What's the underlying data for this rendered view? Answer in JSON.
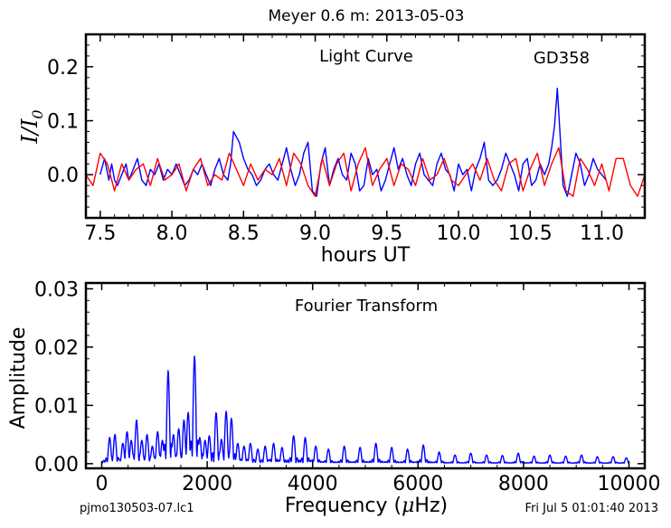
{
  "figure": {
    "title": "Meyer 0.6 m:  2013-05-03",
    "footer_left": "pjmo130503-07.lc1",
    "footer_right": "Fri Jul  5 01:01:40 2013"
  },
  "colors": {
    "data": "#0000ff",
    "model": "#ff0000",
    "axes": "#000000"
  },
  "chart_data": [
    {
      "type": "line",
      "name": "light-curve",
      "title": "Light Curve",
      "annotation": "GD358",
      "xlabel": "hours UT",
      "ylabel": "I/I0",
      "ylabel_main": "I/I",
      "ylabel_sub": "0",
      "xlim": [
        7.4,
        11.3
      ],
      "ylim": [
        -0.08,
        0.26
      ],
      "xticks": [
        7.5,
        8.0,
        8.5,
        9.0,
        9.5,
        10.0,
        10.5,
        11.0
      ],
      "xtick_labels": [
        "7.5",
        "8.0",
        "8.5",
        "9.0",
        "9.5",
        "10.0",
        "10.5",
        "11.0"
      ],
      "yticks": [
        0.0,
        0.1,
        0.2
      ],
      "ytick_labels": [
        "0.0",
        "0.1",
        "0.2"
      ],
      "grid": false,
      "series": [
        {
          "color": "#0000ff",
          "x": [
            7.5,
            7.53,
            7.56,
            7.58,
            7.6,
            7.62,
            7.65,
            7.68,
            7.7,
            7.73,
            7.76,
            7.79,
            7.82,
            7.85,
            7.88,
            7.91,
            7.94,
            7.97,
            8.0,
            8.03,
            8.06,
            8.09,
            8.12,
            8.15,
            8.18,
            8.21,
            8.24,
            8.27,
            8.3,
            8.33,
            8.36,
            8.39,
            8.41,
            8.43,
            8.45,
            8.47,
            8.5,
            8.53,
            8.56,
            8.59,
            8.62,
            8.65,
            8.68,
            8.71,
            8.74,
            8.77,
            8.8,
            8.83,
            8.86,
            8.89,
            8.92,
            8.95,
            8.98,
            9.01,
            9.04,
            9.07,
            9.1,
            9.13,
            9.16,
            9.19,
            9.22,
            9.25,
            9.28,
            9.31,
            9.34,
            9.37,
            9.4,
            9.43,
            9.46,
            9.49,
            9.52,
            9.55,
            9.58,
            9.61,
            9.64,
            9.67,
            9.7,
            9.73,
            9.76,
            9.79,
            9.82,
            9.85,
            9.88,
            9.91,
            9.94,
            9.97,
            10.0,
            10.03,
            10.06,
            10.09,
            10.12,
            10.15,
            10.18,
            10.21,
            10.24,
            10.27,
            10.3,
            10.33,
            10.36,
            10.39,
            10.42,
            10.45,
            10.48,
            10.51,
            10.54,
            10.57,
            10.6,
            10.63,
            10.65,
            10.67,
            10.69,
            10.71,
            10.73,
            10.76,
            10.79,
            10.82,
            10.85,
            10.88,
            10.91,
            10.94,
            10.97,
            11.0,
            11.03
          ],
          "y": [
            0.0,
            0.03,
            -0.01,
            0.02,
            -0.01,
            -0.02,
            0.0,
            0.02,
            -0.01,
            0.01,
            0.03,
            -0.01,
            -0.02,
            0.01,
            0.0,
            0.02,
            -0.01,
            0.01,
            0.0,
            0.02,
            0.0,
            -0.02,
            -0.01,
            0.01,
            0.0,
            0.02,
            0.0,
            -0.02,
            0.01,
            0.03,
            0.0,
            -0.01,
            0.02,
            0.08,
            0.07,
            0.06,
            0.03,
            0.01,
            0.0,
            -0.02,
            -0.01,
            0.01,
            0.02,
            0.0,
            -0.01,
            0.02,
            0.05,
            0.01,
            -0.02,
            0.0,
            0.04,
            0.06,
            -0.03,
            -0.04,
            0.02,
            0.05,
            -0.02,
            0.01,
            0.03,
            0.0,
            -0.01,
            0.04,
            0.02,
            -0.03,
            -0.02,
            0.03,
            0.0,
            0.01,
            -0.03,
            -0.01,
            0.02,
            0.05,
            0.01,
            0.03,
            0.0,
            -0.02,
            0.02,
            0.04,
            0.0,
            -0.01,
            -0.02,
            0.02,
            0.04,
            0.01,
            0.0,
            -0.03,
            0.02,
            0.0,
            0.01,
            -0.03,
            0.01,
            0.03,
            0.06,
            -0.01,
            -0.02,
            -0.01,
            0.01,
            0.04,
            0.02,
            0.0,
            -0.03,
            0.02,
            0.03,
            -0.02,
            -0.01,
            0.02,
            0.0,
            0.02,
            0.05,
            0.09,
            0.16,
            0.07,
            -0.02,
            -0.04,
            0.0,
            0.04,
            0.02,
            -0.02,
            0.0,
            0.03,
            0.01,
            0.0,
            -0.01
          ]
        },
        {
          "color": "#ff0000",
          "x": [
            7.4,
            7.45,
            7.5,
            7.55,
            7.6,
            7.65,
            7.7,
            7.75,
            7.8,
            7.85,
            7.9,
            7.95,
            8.0,
            8.05,
            8.1,
            8.15,
            8.2,
            8.25,
            8.3,
            8.35,
            8.4,
            8.45,
            8.5,
            8.55,
            8.6,
            8.65,
            8.7,
            8.75,
            8.8,
            8.85,
            8.9,
            8.95,
            9.0,
            9.05,
            9.1,
            9.15,
            9.2,
            9.25,
            9.3,
            9.35,
            9.4,
            9.45,
            9.5,
            9.55,
            9.6,
            9.65,
            9.7,
            9.75,
            9.8,
            9.85,
            9.9,
            9.95,
            10.0,
            10.05,
            10.1,
            10.15,
            10.2,
            10.25,
            10.3,
            10.35,
            10.4,
            10.45,
            10.5,
            10.55,
            10.6,
            10.65,
            10.7,
            10.75,
            10.8,
            10.85,
            10.9,
            10.95,
            11.0,
            11.05,
            11.1,
            11.15,
            11.2,
            11.25,
            11.3
          ],
          "y": [
            0.0,
            -0.02,
            0.04,
            0.02,
            -0.03,
            0.02,
            -0.01,
            0.01,
            0.02,
            -0.02,
            0.03,
            -0.01,
            0.0,
            0.02,
            -0.03,
            0.01,
            0.03,
            -0.02,
            0.0,
            -0.01,
            0.04,
            0.01,
            -0.02,
            0.02,
            -0.01,
            0.01,
            0.0,
            0.03,
            -0.02,
            0.04,
            0.02,
            -0.02,
            -0.04,
            0.03,
            -0.02,
            0.02,
            0.04,
            -0.03,
            0.02,
            0.05,
            -0.02,
            0.01,
            0.03,
            -0.02,
            0.02,
            0.01,
            -0.02,
            0.03,
            -0.01,
            0.0,
            0.03,
            -0.01,
            -0.02,
            0.0,
            0.02,
            -0.01,
            0.03,
            -0.01,
            -0.03,
            0.02,
            0.03,
            -0.03,
            0.01,
            0.04,
            -0.02,
            0.02,
            0.05,
            -0.03,
            -0.04,
            0.03,
            0.01,
            -0.02,
            0.02,
            -0.03,
            0.03,
            0.03,
            -0.02,
            -0.04,
            0.0
          ]
        }
      ]
    },
    {
      "type": "line",
      "name": "fourier-transform",
      "title": "Fourier Transform",
      "xlabel": "Frequency (μHz)",
      "xlabel_prefix": "Frequency (",
      "xlabel_mu": "μ",
      "xlabel_suffix": "Hz)",
      "ylabel": "Amplitude",
      "xlim": [
        -300,
        10300
      ],
      "ylim": [
        -0.0008,
        0.031
      ],
      "xticks": [
        0,
        2000,
        4000,
        6000,
        8000,
        10000
      ],
      "xtick_labels": [
        "0",
        "2000",
        "4000",
        "6000",
        "8000",
        "10000"
      ],
      "yticks": [
        0.0,
        0.01,
        0.02,
        0.03
      ],
      "ytick_labels": [
        "0.00",
        "0.01",
        "0.02",
        "0.03"
      ],
      "grid": false,
      "series": [
        {
          "color": "#0000ff",
          "x_range": [
            0,
            10000
          ],
          "peaks": [
            {
              "f": 150,
              "a": 0.0045
            },
            {
              "f": 250,
              "a": 0.005
            },
            {
              "f": 400,
              "a": 0.0035
            },
            {
              "f": 480,
              "a": 0.0055
            },
            {
              "f": 560,
              "a": 0.004
            },
            {
              "f": 660,
              "a": 0.0075
            },
            {
              "f": 760,
              "a": 0.004
            },
            {
              "f": 860,
              "a": 0.005
            },
            {
              "f": 960,
              "a": 0.003
            },
            {
              "f": 1060,
              "a": 0.0055
            },
            {
              "f": 1150,
              "a": 0.004
            },
            {
              "f": 1260,
              "a": 0.016
            },
            {
              "f": 1360,
              "a": 0.005
            },
            {
              "f": 1460,
              "a": 0.006
            },
            {
              "f": 1560,
              "a": 0.0075
            },
            {
              "f": 1640,
              "a": 0.0088
            },
            {
              "f": 1760,
              "a": 0.0185
            },
            {
              "f": 1860,
              "a": 0.0045
            },
            {
              "f": 1960,
              "a": 0.004
            },
            {
              "f": 2040,
              "a": 0.0048
            },
            {
              "f": 2170,
              "a": 0.0088
            },
            {
              "f": 2270,
              "a": 0.0042
            },
            {
              "f": 2360,
              "a": 0.009
            },
            {
              "f": 2460,
              "a": 0.0078
            },
            {
              "f": 2580,
              "a": 0.0035
            },
            {
              "f": 2700,
              "a": 0.003
            },
            {
              "f": 2820,
              "a": 0.0035
            },
            {
              "f": 2960,
              "a": 0.0025
            },
            {
              "f": 3100,
              "a": 0.003
            },
            {
              "f": 3260,
              "a": 0.0035
            },
            {
              "f": 3420,
              "a": 0.0028
            },
            {
              "f": 3640,
              "a": 0.0048
            },
            {
              "f": 3860,
              "a": 0.0045
            },
            {
              "f": 4060,
              "a": 0.003
            },
            {
              "f": 4300,
              "a": 0.0025
            },
            {
              "f": 4600,
              "a": 0.003
            },
            {
              "f": 4900,
              "a": 0.0028
            },
            {
              "f": 5200,
              "a": 0.0035
            },
            {
              "f": 5500,
              "a": 0.0028
            },
            {
              "f": 5800,
              "a": 0.0025
            },
            {
              "f": 6100,
              "a": 0.0032
            },
            {
              "f": 6400,
              "a": 0.002
            },
            {
              "f": 6700,
              "a": 0.0015
            },
            {
              "f": 7000,
              "a": 0.0018
            },
            {
              "f": 7300,
              "a": 0.0015
            },
            {
              "f": 7600,
              "a": 0.0014
            },
            {
              "f": 7900,
              "a": 0.0018
            },
            {
              "f": 8200,
              "a": 0.0013
            },
            {
              "f": 8500,
              "a": 0.0015
            },
            {
              "f": 8800,
              "a": 0.0013
            },
            {
              "f": 9100,
              "a": 0.0015
            },
            {
              "f": 9400,
              "a": 0.0012
            },
            {
              "f": 9700,
              "a": 0.0012
            },
            {
              "f": 9950,
              "a": 0.001
            }
          ]
        }
      ]
    }
  ]
}
